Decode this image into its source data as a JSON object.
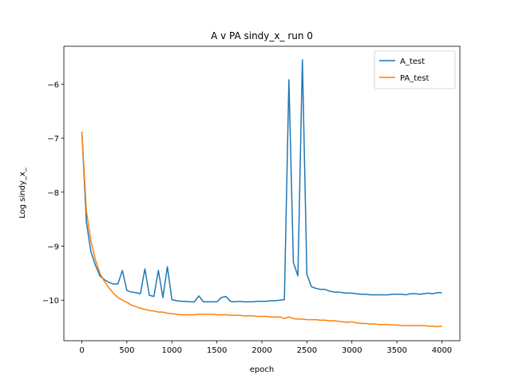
{
  "chart_data": {
    "type": "line",
    "title": "A v PA sindy_x_ run 0",
    "xlabel": "epoch",
    "ylabel": "Log sindy_x_",
    "xlim": [
      -200,
      4200
    ],
    "ylim": [
      -10.75,
      -5.3
    ],
    "x_ticks": [
      0,
      500,
      1000,
      1500,
      2000,
      2500,
      3000,
      3500,
      4000
    ],
    "x_tick_labels": [
      "0",
      "500",
      "1000",
      "1500",
      "2000",
      "2500",
      "3000",
      "3500",
      "4000"
    ],
    "y_ticks": [
      -10,
      -9,
      -8,
      -7,
      -6
    ],
    "y_tick_labels": [
      "−10",
      "−9",
      "−8",
      "−7",
      "−6"
    ],
    "grid": false,
    "legend_position": "top-right",
    "series": [
      {
        "name": "A_test",
        "color": "#1f77b4",
        "x": [
          0,
          50,
          100,
          150,
          200,
          250,
          300,
          350,
          400,
          450,
          500,
          550,
          600,
          650,
          700,
          750,
          800,
          850,
          900,
          950,
          1000,
          1050,
          1100,
          1150,
          1200,
          1250,
          1300,
          1350,
          1400,
          1450,
          1500,
          1550,
          1600,
          1650,
          1700,
          1750,
          1800,
          1850,
          1900,
          1950,
          2000,
          2050,
          2100,
          2150,
          2200,
          2250,
          2300,
          2350,
          2400,
          2450,
          2500,
          2550,
          2600,
          2650,
          2700,
          2750,
          2800,
          2850,
          2900,
          2950,
          3000,
          3050,
          3100,
          3150,
          3200,
          3250,
          3300,
          3350,
          3400,
          3450,
          3500,
          3550,
          3600,
          3650,
          3700,
          3750,
          3800,
          3850,
          3900,
          3950,
          4000
        ],
        "values": [
          -6.88,
          -8.55,
          -9.1,
          -9.35,
          -9.55,
          -9.62,
          -9.67,
          -9.7,
          -9.7,
          -9.45,
          -9.82,
          -9.85,
          -9.86,
          -9.88,
          -9.42,
          -9.91,
          -9.93,
          -9.45,
          -9.95,
          -9.38,
          -9.99,
          -10.01,
          -10.02,
          -10.02,
          -10.03,
          -10.03,
          -9.92,
          -10.03,
          -10.03,
          -10.03,
          -10.03,
          -9.95,
          -9.93,
          -10.02,
          -10.03,
          -10.02,
          -10.03,
          -10.03,
          -10.03,
          -10.02,
          -10.02,
          -10.02,
          -10.01,
          -10.01,
          -10.0,
          -9.99,
          -5.92,
          -9.3,
          -9.55,
          -5.55,
          -9.52,
          -9.75,
          -9.78,
          -9.8,
          -9.8,
          -9.83,
          -9.85,
          -9.85,
          -9.86,
          -9.87,
          -9.87,
          -9.88,
          -9.89,
          -9.89,
          -9.9,
          -9.9,
          -9.9,
          -9.9,
          -9.9,
          -9.89,
          -9.89,
          -9.89,
          -9.9,
          -9.88,
          -9.88,
          -9.89,
          -9.88,
          -9.87,
          -9.88,
          -9.86,
          -9.86
        ]
      },
      {
        "name": "PA_test",
        "color": "#ff7f0e",
        "x": [
          0,
          50,
          100,
          150,
          200,
          250,
          300,
          350,
          400,
          450,
          500,
          550,
          600,
          650,
          700,
          750,
          800,
          850,
          900,
          950,
          1000,
          1050,
          1100,
          1150,
          1200,
          1250,
          1300,
          1350,
          1400,
          1450,
          1500,
          1550,
          1600,
          1650,
          1700,
          1750,
          1800,
          1850,
          1900,
          1950,
          2000,
          2050,
          2100,
          2150,
          2200,
          2250,
          2300,
          2350,
          2400,
          2450,
          2500,
          2550,
          2600,
          2650,
          2700,
          2750,
          2800,
          2850,
          2900,
          2950,
          3000,
          3050,
          3100,
          3150,
          3200,
          3250,
          3300,
          3350,
          3400,
          3450,
          3500,
          3550,
          3600,
          3650,
          3700,
          3750,
          3800,
          3850,
          3900,
          3950,
          4000
        ],
        "values": [
          -6.88,
          -8.35,
          -8.9,
          -9.25,
          -9.5,
          -9.65,
          -9.77,
          -9.87,
          -9.95,
          -10.0,
          -10.04,
          -10.09,
          -10.12,
          -10.15,
          -10.17,
          -10.19,
          -10.2,
          -10.22,
          -10.22,
          -10.24,
          -10.25,
          -10.26,
          -10.27,
          -10.27,
          -10.27,
          -10.27,
          -10.26,
          -10.26,
          -10.26,
          -10.26,
          -10.27,
          -10.27,
          -10.27,
          -10.28,
          -10.28,
          -10.28,
          -10.29,
          -10.29,
          -10.29,
          -10.3,
          -10.3,
          -10.3,
          -10.31,
          -10.31,
          -10.31,
          -10.34,
          -10.31,
          -10.34,
          -10.35,
          -10.35,
          -10.36,
          -10.36,
          -10.36,
          -10.37,
          -10.37,
          -10.38,
          -10.38,
          -10.39,
          -10.4,
          -10.41,
          -10.4,
          -10.42,
          -10.43,
          -10.43,
          -10.44,
          -10.44,
          -10.45,
          -10.45,
          -10.45,
          -10.46,
          -10.46,
          -10.47,
          -10.47,
          -10.47,
          -10.47,
          -10.47,
          -10.47,
          -10.48,
          -10.48,
          -10.49,
          -10.48
        ]
      }
    ]
  }
}
